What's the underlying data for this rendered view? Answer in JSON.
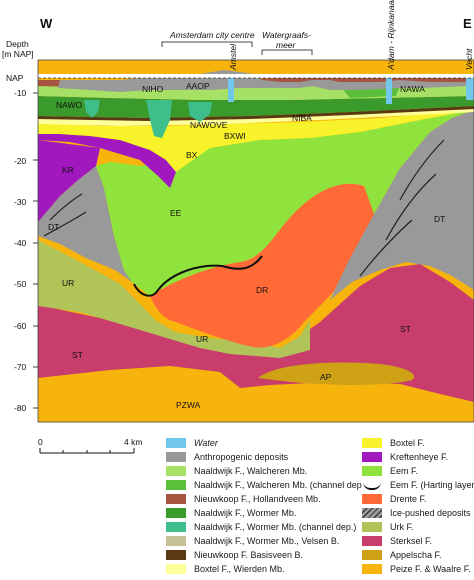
{
  "section": {
    "west_label": "W",
    "east_label": "E",
    "axis_title_1": "Depth",
    "axis_title_2": "[m NAP]",
    "nap_label": "NAP",
    "depth_ticks": [
      "-10",
      "-20",
      "-30",
      "-40",
      "-50",
      "-60",
      "-70",
      "-80"
    ],
    "top_labels": {
      "amsterdam_centre": "Amsterdam city centre",
      "watergraafsmeer_1": "Watergraafs-",
      "watergraafsmeer_2": "meer",
      "amstel": "Amstel",
      "adam_rijnkanaal": "A'dam - Rijnkanaal",
      "vecht": "Vecht"
    },
    "unit_labels": {
      "aaop": "AAOP",
      "niho": "NIHO",
      "nawa": "NAWA",
      "nawo": "NAWO",
      "nawove": "NAWOVE",
      "bxwi": "BXWI",
      "niba": "NIBA",
      "bx": "BX",
      "kr": "KR",
      "ee": "EE",
      "dt_left": "DT",
      "dt_right": "DT",
      "ur_left": "UR",
      "ur_mid": "UR",
      "dr": "DR",
      "st_left": "ST",
      "st_right": "ST",
      "ap": "AP",
      "pzwa": "PZWA"
    },
    "colors": {
      "water": "#72c7ec",
      "anthropogenic": "#999999",
      "walcheren": "#a6e064",
      "walcheren_channel": "#5cbf3b",
      "hollandveen": "#a6543f",
      "wormer": "#3a9a2c",
      "wormer_channel": "#3dbe8a",
      "velsen": "#c7c198",
      "basisveen": "#5a3a14",
      "wierden": "#ffff9a",
      "boxtel": "#f7f229",
      "kreftenheye": "#a218bf",
      "eem": "#8fe33c",
      "drente": "#ff6a36",
      "ice_pushed": "#999999",
      "urk": "#b1c459",
      "sterksel": "#c93d6d",
      "appelscha": "#cfa215",
      "peize_waalre": "#f7b40c"
    }
  },
  "scale": {
    "zero": "0",
    "four_km": "4 km"
  },
  "legend": {
    "left": [
      "Water",
      "Anthropogenic deposits",
      "Naaldwijk F., Walcheren Mb.",
      "Naaldwijk F., Walcheren Mb. (channel dep.)",
      "Nieuwkoop F., Hollandveen Mb.",
      "Naaldwijk F., Wormer Mb.",
      "Naaldwijk F., Wormer Mb. (channel dep.)",
      "Naaldwijk F., Wormer Mb., Velsen B.",
      "Nieuwkoop F. Basisveen B.",
      "Boxtel F., Wierden Mb."
    ],
    "right": [
      "Boxtel F.",
      "Kreftenheye F.",
      "Eem F.",
      "Eem F. (Harting layer)",
      "Drente F.",
      "Ice-pushed deposits",
      "Urk F.",
      "Sterksel F.",
      "Appelscha F.",
      "Peize F. & Waalre F."
    ]
  }
}
